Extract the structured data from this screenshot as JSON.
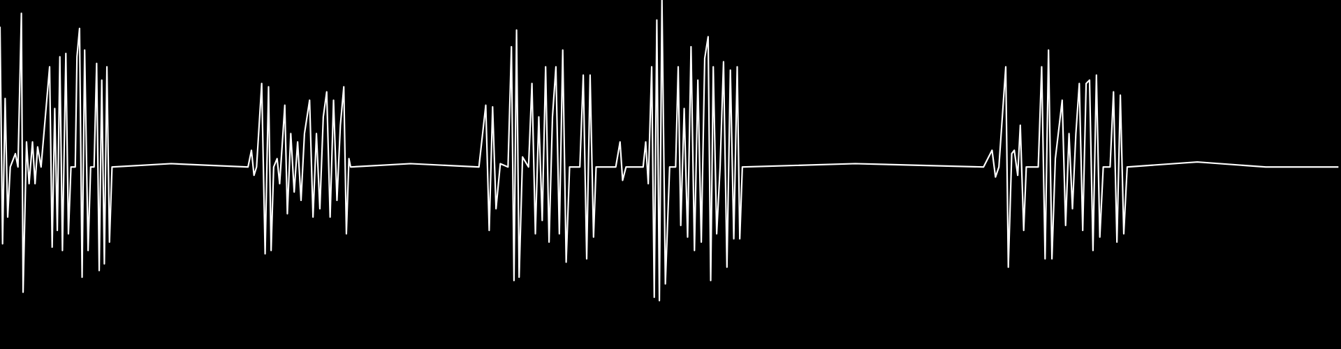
{
  "chart_data": {
    "type": "line",
    "color": "#ffffff",
    "background": "#000000",
    "xlim": [
      0,
      1568
    ],
    "ylim": [
      -1.09,
      1
    ],
    "x": [
      0,
      3,
      6,
      9,
      12,
      18,
      21,
      25,
      27,
      31,
      34,
      38,
      41,
      44,
      48,
      58,
      61,
      64,
      67,
      70,
      73,
      77,
      80,
      83,
      88,
      90,
      93,
      96,
      99,
      103,
      106,
      110,
      113,
      116,
      119,
      122,
      125,
      128,
      131,
      200,
      290,
      294,
      297,
      300,
      306,
      310,
      314,
      317,
      320,
      324,
      327,
      333,
      336,
      340,
      344,
      348,
      352,
      356,
      362,
      366,
      370,
      374,
      378,
      382,
      386,
      390,
      394,
      398,
      402,
      405,
      408,
      410,
      480,
      560,
      568,
      572,
      576,
      580,
      585,
      594,
      598,
      601,
      604,
      607,
      611,
      618,
      622,
      626,
      630,
      634,
      638,
      642,
      646,
      650,
      654,
      658,
      662,
      666,
      678,
      682,
      686,
      690,
      694,
      697,
      720,
      725,
      728,
      732,
      752,
      755,
      758,
      762,
      765,
      768,
      771,
      774,
      778,
      783,
      790,
      793,
      796,
      800,
      804,
      808,
      812,
      816,
      820,
      824,
      828,
      831,
      834,
      838,
      842,
      846,
      850,
      854,
      858,
      862,
      865,
      868,
      1000,
      1150,
      1160,
      1164,
      1168,
      1176,
      1179,
      1183,
      1186,
      1190,
      1193,
      1197,
      1200,
      1214,
      1218,
      1222,
      1226,
      1230,
      1234,
      1242,
      1246,
      1250,
      1254,
      1258,
      1262,
      1266,
      1270,
      1274,
      1278,
      1282,
      1286,
      1290,
      1298,
      1302,
      1306,
      1310,
      1314,
      1318,
      1400,
      1480,
      1565
    ],
    "values": [
      0.84,
      -0.46,
      0.41,
      -0.3,
      0,
      0.08,
      0,
      0.92,
      -0.75,
      0.15,
      -0.1,
      0.15,
      -0.1,
      0.12,
      0,
      0.6,
      -0.48,
      0.35,
      -0.38,
      0.66,
      -0.5,
      0.68,
      -0.4,
      0,
      0,
      0.66,
      0.83,
      -0.66,
      0.7,
      -0.5,
      0,
      0,
      0.62,
      -0.62,
      0.52,
      -0.58,
      0.6,
      -0.45,
      0,
      0.02,
      0,
      0.1,
      -0.05,
      0,
      0.5,
      -0.52,
      0.48,
      -0.5,
      0,
      0.05,
      -0.1,
      0.37,
      -0.28,
      0.2,
      -0.15,
      0.15,
      -0.2,
      0.2,
      0.4,
      -0.3,
      0.2,
      -0.25,
      0.3,
      0.45,
      -0.3,
      0.4,
      -0.2,
      0.25,
      0.48,
      -0.4,
      0.05,
      0,
      0.02,
      0,
      0.37,
      -0.38,
      0.36,
      -0.25,
      0.02,
      0,
      0.72,
      -0.68,
      0.82,
      -0.66,
      0.06,
      0,
      0.5,
      -0.4,
      0.3,
      -0.32,
      0.6,
      -0.45,
      0.3,
      0.6,
      -0.4,
      0.7,
      -0.57,
      0,
      0,
      0.55,
      -0.55,
      0.55,
      -0.42,
      0,
      0,
      0.15,
      -0.08,
      0,
      0,
      0.15,
      -0.1,
      0.6,
      -0.78,
      0.88,
      -0.8,
      1,
      -0.7,
      0,
      0,
      0.6,
      -0.35,
      0.35,
      -0.42,
      0.72,
      -0.5,
      0.52,
      -0.45,
      0.65,
      0.78,
      -0.68,
      0.6,
      -0.4,
      0,
      0.63,
      -0.6,
      0.58,
      -0.43,
      0.6,
      -0.43,
      0,
      0.02,
      0,
      0.1,
      -0.06,
      0,
      0.6,
      -0.6,
      0.08,
      0.1,
      -0.05,
      0.25,
      -0.38,
      0,
      0,
      0.6,
      -0.55,
      0.7,
      -0.55,
      0.05,
      0.4,
      -0.35,
      0.2,
      -0.25,
      0.2,
      0.5,
      -0.38,
      0.5,
      0.52,
      -0.5,
      0.55,
      -0.42,
      0,
      0,
      0.45,
      -0.45,
      0.43,
      -0.4,
      0,
      0.03,
      0,
      0
    ]
  }
}
